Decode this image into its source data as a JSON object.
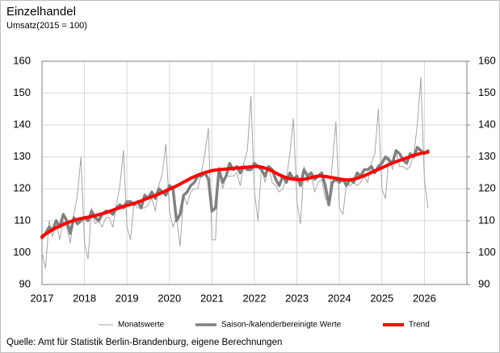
{
  "chart_data": {
    "type": "line",
    "title": "Einzelhandel",
    "subtitle": "Umsatz(2015 = 100)",
    "source": "Quelle:  Amt für  Statistik Berlin-Brandenburg,  eigene  Berechnungen",
    "categories": [
      "2017",
      null,
      null,
      null,
      null,
      null,
      null,
      null,
      null,
      null,
      null,
      null,
      "2018",
      null,
      null,
      null,
      null,
      null,
      null,
      null,
      null,
      null,
      null,
      null,
      "2019",
      null,
      null,
      null,
      null,
      null,
      null,
      null,
      null,
      null,
      null,
      null,
      "2020",
      null,
      null,
      null,
      null,
      null,
      null,
      null,
      null,
      null,
      null,
      null,
      "2021",
      null,
      null,
      null,
      null,
      null,
      null,
      null,
      null,
      null,
      null,
      null,
      "2022",
      null,
      null,
      null,
      null,
      null,
      null,
      null,
      null,
      null,
      null,
      null,
      "2023",
      null,
      null,
      null,
      null,
      null,
      null,
      null,
      null,
      null,
      null,
      null,
      "2024",
      null,
      null,
      null,
      null,
      null,
      null,
      null,
      null,
      null,
      null,
      null,
      "2025",
      null,
      null,
      null,
      null,
      null,
      null,
      null,
      null,
      null,
      null,
      null,
      "2026",
      null,
      null,
      null,
      null,
      null,
      null,
      null,
      null,
      null,
      null,
      null
    ],
    "ylim": [
      90,
      160
    ],
    "yticks": [
      90,
      100,
      110,
      120,
      130,
      140,
      150,
      160
    ],
    "y2lim": [
      90,
      160
    ],
    "y2ticks": [
      90,
      100,
      110,
      120,
      130,
      140,
      150,
      160
    ],
    "grid": true,
    "legend": "bottom",
    "series": [
      {
        "name": "Monatswerte",
        "color": "#a6a6a6",
        "width": 1,
        "values": [
          100,
          95,
          110,
          105,
          110,
          104,
          110,
          108,
          103,
          112,
          118,
          130,
          103,
          98,
          114,
          109,
          110,
          108,
          111,
          111,
          108,
          115,
          121,
          132,
          108,
          104,
          116,
          114,
          114,
          114,
          115,
          117,
          113,
          121,
          125,
          134,
          113,
          108,
          111,
          102,
          118,
          115,
          119,
          120,
          120,
          125,
          131,
          139,
          104,
          104,
          127,
          120,
          124,
          124,
          124,
          125,
          121,
          128,
          132,
          149,
          119,
          110,
          127,
          122,
          127,
          122,
          121,
          119,
          120,
          123,
          131,
          142,
          116,
          109,
          127,
          122,
          125,
          119,
          122,
          123,
          117,
          116,
          128,
          141,
          114,
          112,
          122,
          121,
          122,
          121,
          122,
          124,
          122,
          128,
          131,
          145,
          120,
          117,
          130,
          126,
          132,
          127,
          127,
          126,
          127,
          131,
          140,
          155,
          123,
          114,
          null,
          null,
          null,
          null,
          null,
          null,
          null,
          null,
          null,
          null
        ]
      },
      {
        "name": "Saison-/kalenderbereinigte Werte",
        "color": "#808080",
        "width": 3.5,
        "values": [
          104.5,
          106,
          108,
          107,
          110,
          108,
          112,
          110,
          106,
          111,
          109,
          110,
          111,
          110,
          113,
          111,
          110,
          112,
          113,
          113,
          112,
          114,
          115,
          114,
          116,
          116,
          115,
          116,
          114,
          118,
          117,
          119,
          117,
          120,
          119,
          118,
          121,
          120,
          110,
          112,
          118,
          119,
          121,
          122,
          124,
          124,
          125,
          123,
          113,
          114,
          126,
          122,
          124,
          128,
          126,
          127,
          125,
          127,
          126,
          126,
          128,
          127,
          126,
          124,
          127,
          126,
          123,
          121,
          124,
          122,
          125,
          123,
          124,
          121,
          126,
          124,
          125,
          123,
          124,
          125,
          121,
          115,
          122,
          123,
          122,
          123,
          121,
          123,
          122,
          125,
          124,
          126,
          126,
          127,
          125,
          127,
          128,
          130,
          129,
          128,
          132,
          131,
          129,
          128,
          131,
          130,
          133,
          132,
          131,
          132,
          null,
          null,
          null,
          null,
          null,
          null,
          null,
          null,
          null,
          null
        ]
      },
      {
        "name": "Trend",
        "color": "#ff0000",
        "width": 4,
        "values": [
          105.0,
          105.8,
          106.5,
          107.2,
          107.8,
          108.3,
          108.8,
          109.3,
          109.7,
          110.1,
          110.4,
          110.7,
          110.9,
          111.1,
          111.3,
          111.6,
          111.9,
          112.2,
          112.5,
          112.9,
          113.3,
          113.7,
          114.1,
          114.5,
          114.8,
          115.1,
          115.4,
          115.8,
          116.2,
          116.7,
          117.1,
          117.5,
          117.9,
          118.4,
          118.9,
          119.4,
          119.9,
          120.4,
          120.9,
          121.5,
          122.1,
          122.7,
          123.3,
          123.8,
          124.3,
          124.7,
          125.1,
          125.4,
          125.7,
          125.9,
          126.0,
          126.1,
          126.2,
          126.3,
          126.4,
          126.5,
          126.6,
          126.7,
          126.8,
          126.9,
          127.0,
          127.0,
          126.8,
          126.5,
          126.1,
          125.6,
          125.0,
          124.4,
          123.9,
          123.5,
          123.2,
          123.0,
          122.9,
          122.9,
          123.0,
          123.2,
          123.5,
          123.8,
          124.0,
          124.0,
          123.9,
          123.7,
          123.5,
          123.3,
          123.1,
          122.9,
          122.8,
          122.8,
          123.0,
          123.3,
          123.7,
          124.1,
          124.6,
          125.1,
          125.6,
          126.1,
          126.6,
          127.1,
          127.6,
          128.1,
          128.5,
          128.9,
          129.3,
          129.7,
          130.1,
          130.5,
          130.8,
          131.1,
          131.3,
          131.5,
          null,
          null,
          null,
          null,
          null,
          null,
          null,
          null,
          null,
          null
        ]
      }
    ]
  }
}
